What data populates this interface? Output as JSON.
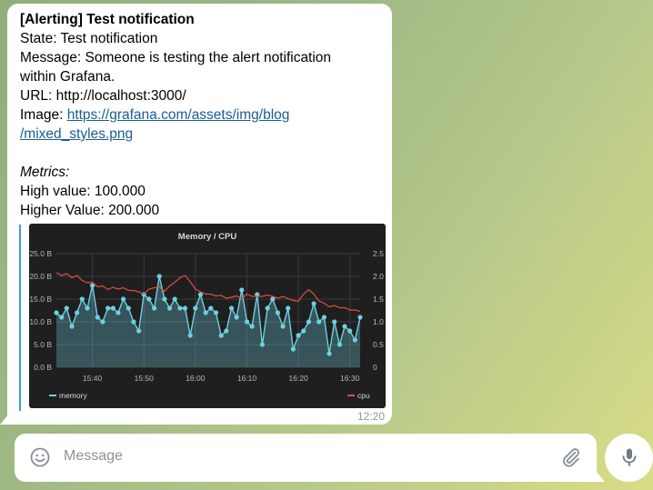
{
  "message": {
    "title": "[Alerting] Test notification",
    "state": "State: Test notification",
    "message_line1": "Message: Someone is testing the alert notification",
    "message_line2": "within Grafana.",
    "url": "URL: http://localhost:3000/",
    "image_label": "Image: ",
    "image_link_line1": "https://grafana.com/assets/img/blog",
    "image_link_line2": "/mixed_styles.png",
    "metrics_heading": "Metrics:",
    "high_value": "High value: 100.000",
    "higher_value": "Higher Value: 200.000",
    "time": "12:20"
  },
  "chart_data": {
    "type": "line",
    "title": "Memory / CPU",
    "x": [
      "15:33",
      "15:34",
      "15:35",
      "15:36",
      "15:37",
      "15:38",
      "15:39",
      "15:40",
      "15:41",
      "15:42",
      "15:43",
      "15:44",
      "15:45",
      "15:46",
      "15:47",
      "15:48",
      "15:49",
      "15:50",
      "15:51",
      "15:52",
      "15:53",
      "15:54",
      "15:55",
      "15:56",
      "15:57",
      "15:58",
      "15:59",
      "16:00",
      "16:01",
      "16:02",
      "16:03",
      "16:04",
      "16:05",
      "16:06",
      "16:07",
      "16:08",
      "16:09",
      "16:10",
      "16:11",
      "16:12",
      "16:13",
      "16:14",
      "16:15",
      "16:16",
      "16:17",
      "16:18",
      "16:19",
      "16:20",
      "16:21",
      "16:22",
      "16:23",
      "16:24",
      "16:25",
      "16:26",
      "16:27",
      "16:28",
      "16:29",
      "16:30",
      "16:31",
      "16:32"
    ],
    "xticks": [
      "15:40",
      "15:50",
      "16:00",
      "16:10",
      "16:20",
      "16:30"
    ],
    "series": [
      {
        "name": "memory",
        "axis": "left",
        "color": "#6ed0e0",
        "fill": true,
        "values": [
          12,
          11,
          13,
          9,
          12,
          15,
          13,
          18,
          11,
          10,
          13,
          13,
          12,
          15,
          13,
          10,
          8,
          16,
          15,
          13,
          20,
          15,
          13,
          15,
          13,
          13,
          7,
          13,
          16,
          12,
          13,
          12,
          7,
          8,
          13,
          11,
          17,
          10,
          9,
          16,
          5,
          13,
          15,
          12,
          9,
          13,
          4,
          7,
          8,
          10,
          14,
          10,
          11,
          3,
          10,
          5,
          9,
          8,
          6,
          11
        ]
      },
      {
        "name": "cpu",
        "axis": "right",
        "color": "#e24d42",
        "values": [
          2.08,
          2.02,
          2.06,
          1.97,
          2.02,
          1.91,
          1.86,
          1.87,
          1.77,
          1.79,
          1.71,
          1.76,
          1.72,
          1.75,
          1.69,
          1.69,
          1.66,
          1.61,
          1.72,
          1.75,
          1.77,
          1.67,
          1.79,
          1.87,
          1.97,
          2.02,
          1.88,
          1.72,
          1.66,
          1.61,
          1.61,
          1.57,
          1.58,
          1.52,
          1.54,
          1.57,
          1.51,
          1.61,
          1.56,
          1.56,
          1.56,
          1.59,
          1.56,
          1.52,
          1.56,
          1.51,
          1.47,
          1.45,
          1.61,
          1.71,
          1.61,
          1.46,
          1.41,
          1.33,
          1.36,
          1.31,
          1.31,
          1.26,
          1.26,
          1.23
        ]
      }
    ],
    "y_left": {
      "ticks": [
        "0.0 B",
        "5.0 B",
        "10.0 B",
        "15.0 B",
        "20.0 B",
        "25.0 B"
      ],
      "ylim": [
        0,
        25
      ]
    },
    "y_right": {
      "ticks": [
        "0",
        "0.5",
        "1.0",
        "1.5",
        "2.0",
        "2.5"
      ],
      "ylim": [
        0,
        2.5
      ]
    },
    "grid": true,
    "legend": "bottom"
  },
  "composer": {
    "placeholder": "Message",
    "emoji_icon": "emoji-icon",
    "attach_icon": "paperclip-icon",
    "mic_icon": "microphone-icon"
  }
}
